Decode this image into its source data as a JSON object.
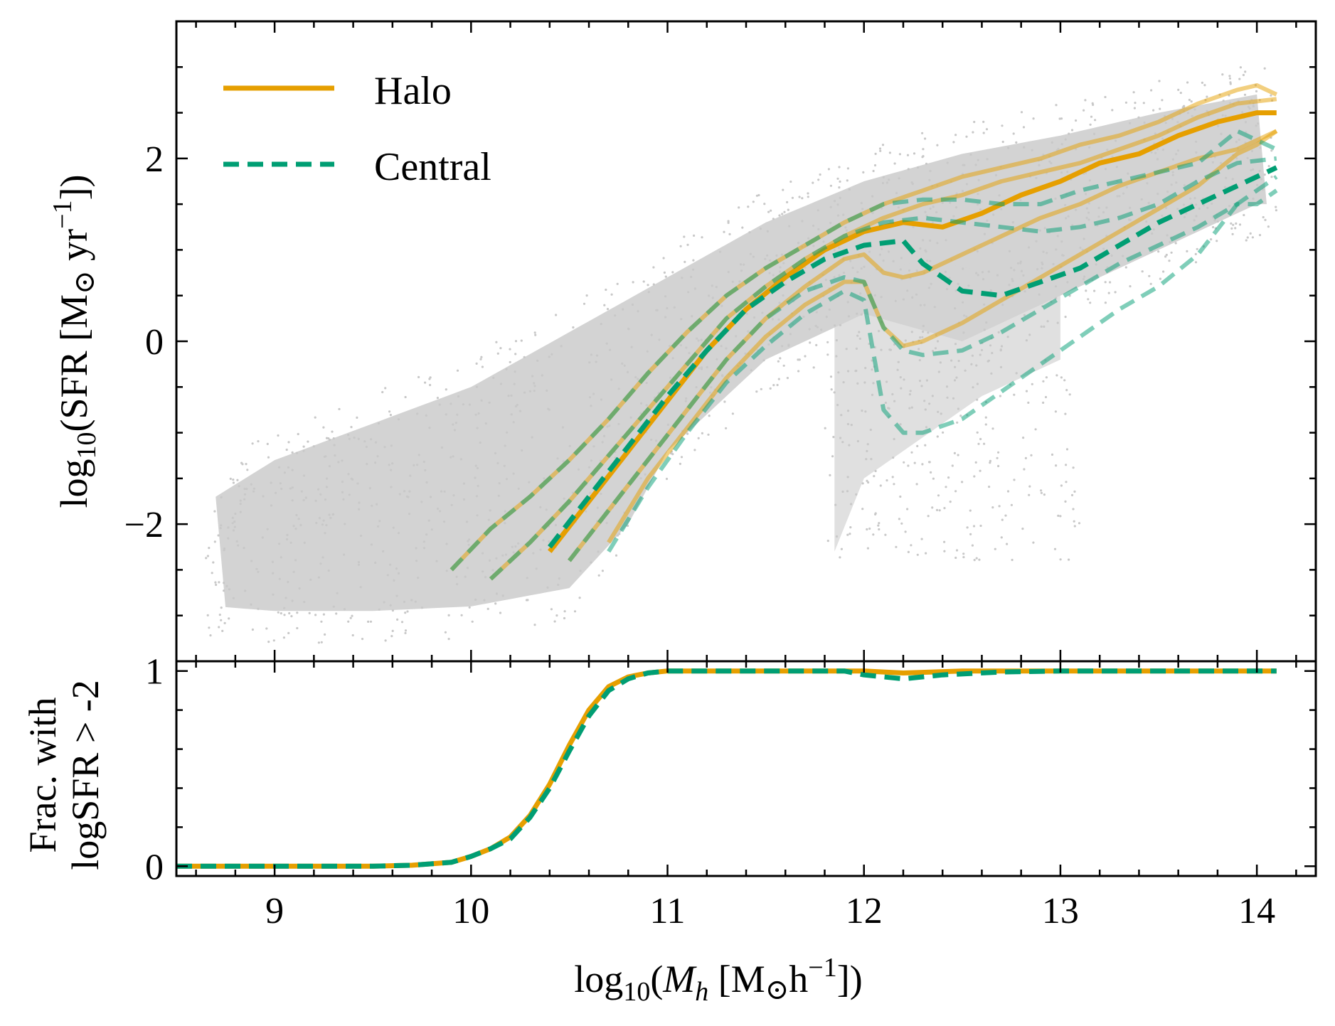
{
  "colors": {
    "halo": "#E69F00",
    "central": "#009E73",
    "scatter": "#d3d3d3",
    "axis": "#000000"
  },
  "chart_data": [
    {
      "panel": "top",
      "type": "line",
      "xlim": [
        8.5,
        14.3
      ],
      "ylim": [
        -3.5,
        3.5
      ],
      "xlabel": "",
      "ylabel_parts": {
        "prefix": "log",
        "sub": "10",
        "middle": "(SFR [M",
        "odot": "⊙",
        "unit": " yr",
        "sup": "−1",
        "suffix": "])"
      },
      "yticks": [
        -2,
        0,
        2
      ],
      "ytick_labels": [
        "−2",
        "0",
        "2"
      ],
      "legend": {
        "placement": "top-left",
        "entries": [
          "Halo",
          "Central"
        ]
      },
      "scatter_cloud": {
        "description_note": "dense grey background points of individual galaxies",
        "ridge": [
          [
            8.7,
            -2.5
          ],
          [
            9.0,
            -2.45
          ],
          [
            9.5,
            -2.3
          ],
          [
            10.0,
            -1.7
          ],
          [
            10.5,
            -0.9
          ],
          [
            11.0,
            0.0
          ],
          [
            11.5,
            0.7
          ],
          [
            12.0,
            1.2
          ],
          [
            12.5,
            1.55
          ],
          [
            13.0,
            1.8
          ],
          [
            13.5,
            2.0
          ],
          [
            14.0,
            2.2
          ]
        ],
        "upper": [
          [
            8.7,
            -1.7
          ],
          [
            9.0,
            -1.3
          ],
          [
            9.5,
            -0.9
          ],
          [
            10.0,
            -0.5
          ],
          [
            10.5,
            0.1
          ],
          [
            11.0,
            0.7
          ],
          [
            11.5,
            1.3
          ],
          [
            12.0,
            1.75
          ],
          [
            12.5,
            2.05
          ],
          [
            13.0,
            2.25
          ],
          [
            13.5,
            2.5
          ],
          [
            14.0,
            2.7
          ]
        ],
        "lower": [
          [
            8.7,
            -2.9
          ],
          [
            9.0,
            -2.95
          ],
          [
            9.5,
            -2.95
          ],
          [
            10.0,
            -2.9
          ],
          [
            10.5,
            -2.7
          ],
          [
            10.8,
            -2.0
          ],
          [
            11.0,
            -1.2
          ],
          [
            11.5,
            -0.2
          ],
          [
            12.0,
            0.3
          ],
          [
            12.5,
            0.0
          ],
          [
            13.0,
            0.5
          ],
          [
            13.5,
            1.0
          ],
          [
            14.0,
            1.5
          ]
        ],
        "quenched": [
          [
            11.85,
            -2.3
          ],
          [
            12.0,
            -1.5
          ],
          [
            12.2,
            -1.2
          ],
          [
            12.4,
            -0.9
          ],
          [
            12.6,
            -0.6
          ],
          [
            12.8,
            -0.4
          ],
          [
            13.0,
            -0.2
          ]
        ]
      },
      "series": [
        {
          "name": "Halo",
          "style": "solid",
          "role": "median",
          "x": [
            10.4,
            10.6,
            10.8,
            11.0,
            11.2,
            11.4,
            11.6,
            11.8,
            12.0,
            12.2,
            12.4,
            12.6,
            12.8,
            13.0,
            13.2,
            13.4,
            13.6,
            13.8,
            14.0,
            14.1
          ],
          "values": [
            -2.3,
            -1.75,
            -1.2,
            -0.65,
            -0.1,
            0.35,
            0.7,
            1.0,
            1.2,
            1.3,
            1.25,
            1.4,
            1.6,
            1.75,
            1.95,
            2.05,
            2.25,
            2.4,
            2.5,
            2.5
          ]
        },
        {
          "name": "",
          "style": "solid-faint",
          "role": "upper-2",
          "x": [
            9.9,
            10.1,
            10.3,
            10.5,
            10.7,
            10.9,
            11.1,
            11.3,
            11.5,
            11.7,
            11.9,
            12.1,
            12.3,
            12.5,
            12.7,
            12.9,
            13.1,
            13.3,
            13.5,
            13.7,
            13.9,
            14.0,
            14.1
          ],
          "values": [
            -2.5,
            -2.05,
            -1.7,
            -1.3,
            -0.85,
            -0.35,
            0.1,
            0.5,
            0.8,
            1.05,
            1.3,
            1.5,
            1.65,
            1.8,
            1.9,
            2.0,
            2.15,
            2.25,
            2.4,
            2.6,
            2.75,
            2.8,
            2.7
          ]
        },
        {
          "name": "",
          "style": "solid-faint",
          "role": "upper-1",
          "x": [
            10.1,
            10.3,
            10.5,
            10.7,
            10.9,
            11.1,
            11.3,
            11.5,
            11.7,
            11.9,
            12.1,
            12.3,
            12.5,
            12.7,
            12.9,
            13.1,
            13.3,
            13.5,
            13.7,
            13.9,
            14.1
          ],
          "values": [
            -2.6,
            -2.2,
            -1.75,
            -1.25,
            -0.75,
            -0.25,
            0.25,
            0.6,
            0.9,
            1.15,
            1.35,
            1.5,
            1.6,
            1.75,
            1.85,
            1.95,
            2.1,
            2.25,
            2.45,
            2.6,
            2.65
          ]
        },
        {
          "name": "",
          "style": "solid-faint",
          "role": "lower-1",
          "x": [
            10.5,
            10.7,
            10.9,
            11.1,
            11.3,
            11.5,
            11.7,
            11.9,
            12.0,
            12.1,
            12.2,
            12.3,
            12.5,
            12.7,
            12.9,
            13.1,
            13.3,
            13.5,
            13.7,
            13.9,
            14.1
          ],
          "values": [
            -2.4,
            -1.85,
            -1.3,
            -0.75,
            -0.2,
            0.25,
            0.6,
            0.9,
            0.95,
            0.75,
            0.7,
            0.75,
            0.95,
            1.15,
            1.35,
            1.5,
            1.7,
            1.85,
            2.0,
            2.1,
            2.3
          ]
        },
        {
          "name": "",
          "style": "solid-faint",
          "role": "lower-2",
          "x": [
            10.7,
            10.9,
            11.1,
            11.3,
            11.5,
            11.7,
            11.9,
            12.0,
            12.1,
            12.2,
            12.3,
            12.5,
            12.7,
            12.9,
            13.1,
            13.3,
            13.5,
            13.7,
            13.9,
            14.0,
            14.1
          ],
          "values": [
            -2.2,
            -1.5,
            -0.95,
            -0.4,
            0.05,
            0.4,
            0.65,
            0.65,
            0.15,
            -0.05,
            0.0,
            0.2,
            0.45,
            0.7,
            0.95,
            1.2,
            1.45,
            1.7,
            2.05,
            2.15,
            2.3
          ]
        },
        {
          "name": "Central",
          "style": "dashed",
          "role": "median",
          "x": [
            10.4,
            10.6,
            10.8,
            11.0,
            11.2,
            11.4,
            11.6,
            11.8,
            12.0,
            12.2,
            12.3,
            12.5,
            12.7,
            12.9,
            13.1,
            13.3,
            13.5,
            13.7,
            13.9,
            14.1
          ],
          "values": [
            -2.25,
            -1.7,
            -1.15,
            -0.6,
            -0.1,
            0.35,
            0.65,
            0.9,
            1.05,
            1.1,
            0.85,
            0.55,
            0.5,
            0.65,
            0.8,
            1.05,
            1.3,
            1.5,
            1.7,
            1.9
          ]
        },
        {
          "name": "",
          "style": "dashed-faint",
          "role": "upper-2",
          "x": [
            9.9,
            10.1,
            10.3,
            10.5,
            10.7,
            10.9,
            11.1,
            11.3,
            11.5,
            11.7,
            11.9,
            12.1,
            12.3,
            12.5,
            12.7,
            12.9,
            13.1,
            13.3,
            13.5,
            13.7,
            13.9,
            14.1
          ],
          "values": [
            -2.5,
            -2.05,
            -1.7,
            -1.3,
            -0.85,
            -0.35,
            0.1,
            0.5,
            0.8,
            1.05,
            1.3,
            1.5,
            1.55,
            1.55,
            1.5,
            1.5,
            1.65,
            1.75,
            1.85,
            1.95,
            2.3,
            2.1
          ]
        },
        {
          "name": "",
          "style": "dashed-faint",
          "role": "upper-1",
          "x": [
            10.1,
            10.3,
            10.5,
            10.7,
            10.9,
            11.1,
            11.3,
            11.5,
            11.7,
            11.9,
            12.1,
            12.3,
            12.5,
            12.7,
            12.9,
            13.1,
            13.3,
            13.5,
            13.7,
            13.9,
            14.1
          ],
          "values": [
            -2.6,
            -2.2,
            -1.75,
            -1.25,
            -0.75,
            -0.25,
            0.25,
            0.6,
            0.9,
            1.15,
            1.3,
            1.35,
            1.3,
            1.25,
            1.2,
            1.25,
            1.35,
            1.5,
            1.75,
            1.95,
            2.0
          ]
        },
        {
          "name": "",
          "style": "dashed-faint",
          "role": "lower-1",
          "x": [
            10.5,
            10.7,
            10.9,
            11.1,
            11.3,
            11.5,
            11.7,
            11.9,
            12.0,
            12.1,
            12.2,
            12.3,
            12.5,
            12.7,
            12.9,
            13.1,
            13.3,
            13.5,
            13.7,
            13.9,
            14.1
          ],
          "values": [
            -2.4,
            -1.85,
            -1.3,
            -0.75,
            -0.2,
            0.25,
            0.55,
            0.7,
            0.65,
            0.15,
            -0.1,
            -0.15,
            -0.1,
            0.1,
            0.35,
            0.6,
            0.85,
            1.05,
            1.25,
            1.5,
            1.8
          ]
        },
        {
          "name": "",
          "style": "dashed-faint",
          "role": "lower-2",
          "x": [
            10.7,
            10.9,
            11.1,
            11.3,
            11.5,
            11.7,
            11.9,
            12.0,
            12.1,
            12.2,
            12.3,
            12.5,
            12.7,
            12.9,
            13.1,
            13.3,
            13.5,
            13.7,
            13.9,
            14.0,
            14.1
          ],
          "values": [
            -2.3,
            -1.6,
            -1.0,
            -0.45,
            -0.05,
            0.3,
            0.55,
            0.45,
            -0.75,
            -1.0,
            -1.0,
            -0.85,
            -0.55,
            -0.25,
            0.05,
            0.35,
            0.6,
            0.95,
            1.5,
            1.5,
            1.65
          ]
        }
      ]
    },
    {
      "panel": "bottom",
      "type": "line",
      "xlim": [
        8.5,
        14.3
      ],
      "ylim": [
        -0.05,
        1.05
      ],
      "xlabel_parts": {
        "prefix": "log",
        "sub": "10",
        "open": "(",
        "var": "M",
        "var_sub": "h",
        "middle": " [M",
        "odot": "⊙",
        "unit": "h",
        "sup": "−1",
        "suffix": "])"
      },
      "ylabel_line1": "Frac. with",
      "ylabel_line2": "logSFR > -2",
      "xticks": [
        9,
        10,
        11,
        12,
        13,
        14
      ],
      "xtick_labels": [
        "9",
        "10",
        "11",
        "12",
        "13",
        "14"
      ],
      "yticks": [
        0,
        1
      ],
      "ytick_labels": [
        "0",
        "1"
      ],
      "series": [
        {
          "name": "Halo",
          "style": "solid",
          "x": [
            8.5,
            9.0,
            9.5,
            9.7,
            9.9,
            10.0,
            10.1,
            10.2,
            10.3,
            10.4,
            10.5,
            10.6,
            10.7,
            10.8,
            10.9,
            11.0,
            11.5,
            12.0,
            12.2,
            12.5,
            13.0,
            13.5,
            14.0,
            14.1
          ],
          "values": [
            0.0,
            0.0,
            0.0,
            0.005,
            0.02,
            0.05,
            0.09,
            0.15,
            0.26,
            0.42,
            0.62,
            0.8,
            0.92,
            0.97,
            0.99,
            1.0,
            1.0,
            1.0,
            0.99,
            1.0,
            1.0,
            1.0,
            1.0,
            1.0
          ]
        },
        {
          "name": "Central",
          "style": "dashed",
          "x": [
            8.5,
            9.0,
            9.5,
            9.7,
            9.9,
            10.0,
            10.1,
            10.2,
            10.3,
            10.4,
            10.5,
            10.6,
            10.7,
            10.8,
            10.9,
            11.0,
            11.5,
            11.9,
            12.0,
            12.2,
            12.4,
            12.7,
            13.0,
            13.5,
            14.0,
            14.1
          ],
          "values": [
            0.0,
            0.0,
            0.0,
            0.005,
            0.02,
            0.05,
            0.09,
            0.14,
            0.25,
            0.4,
            0.59,
            0.77,
            0.9,
            0.96,
            0.99,
            1.0,
            1.0,
            1.0,
            0.98,
            0.96,
            0.98,
            0.995,
            1.0,
            1.0,
            1.0,
            1.0
          ]
        }
      ]
    }
  ]
}
